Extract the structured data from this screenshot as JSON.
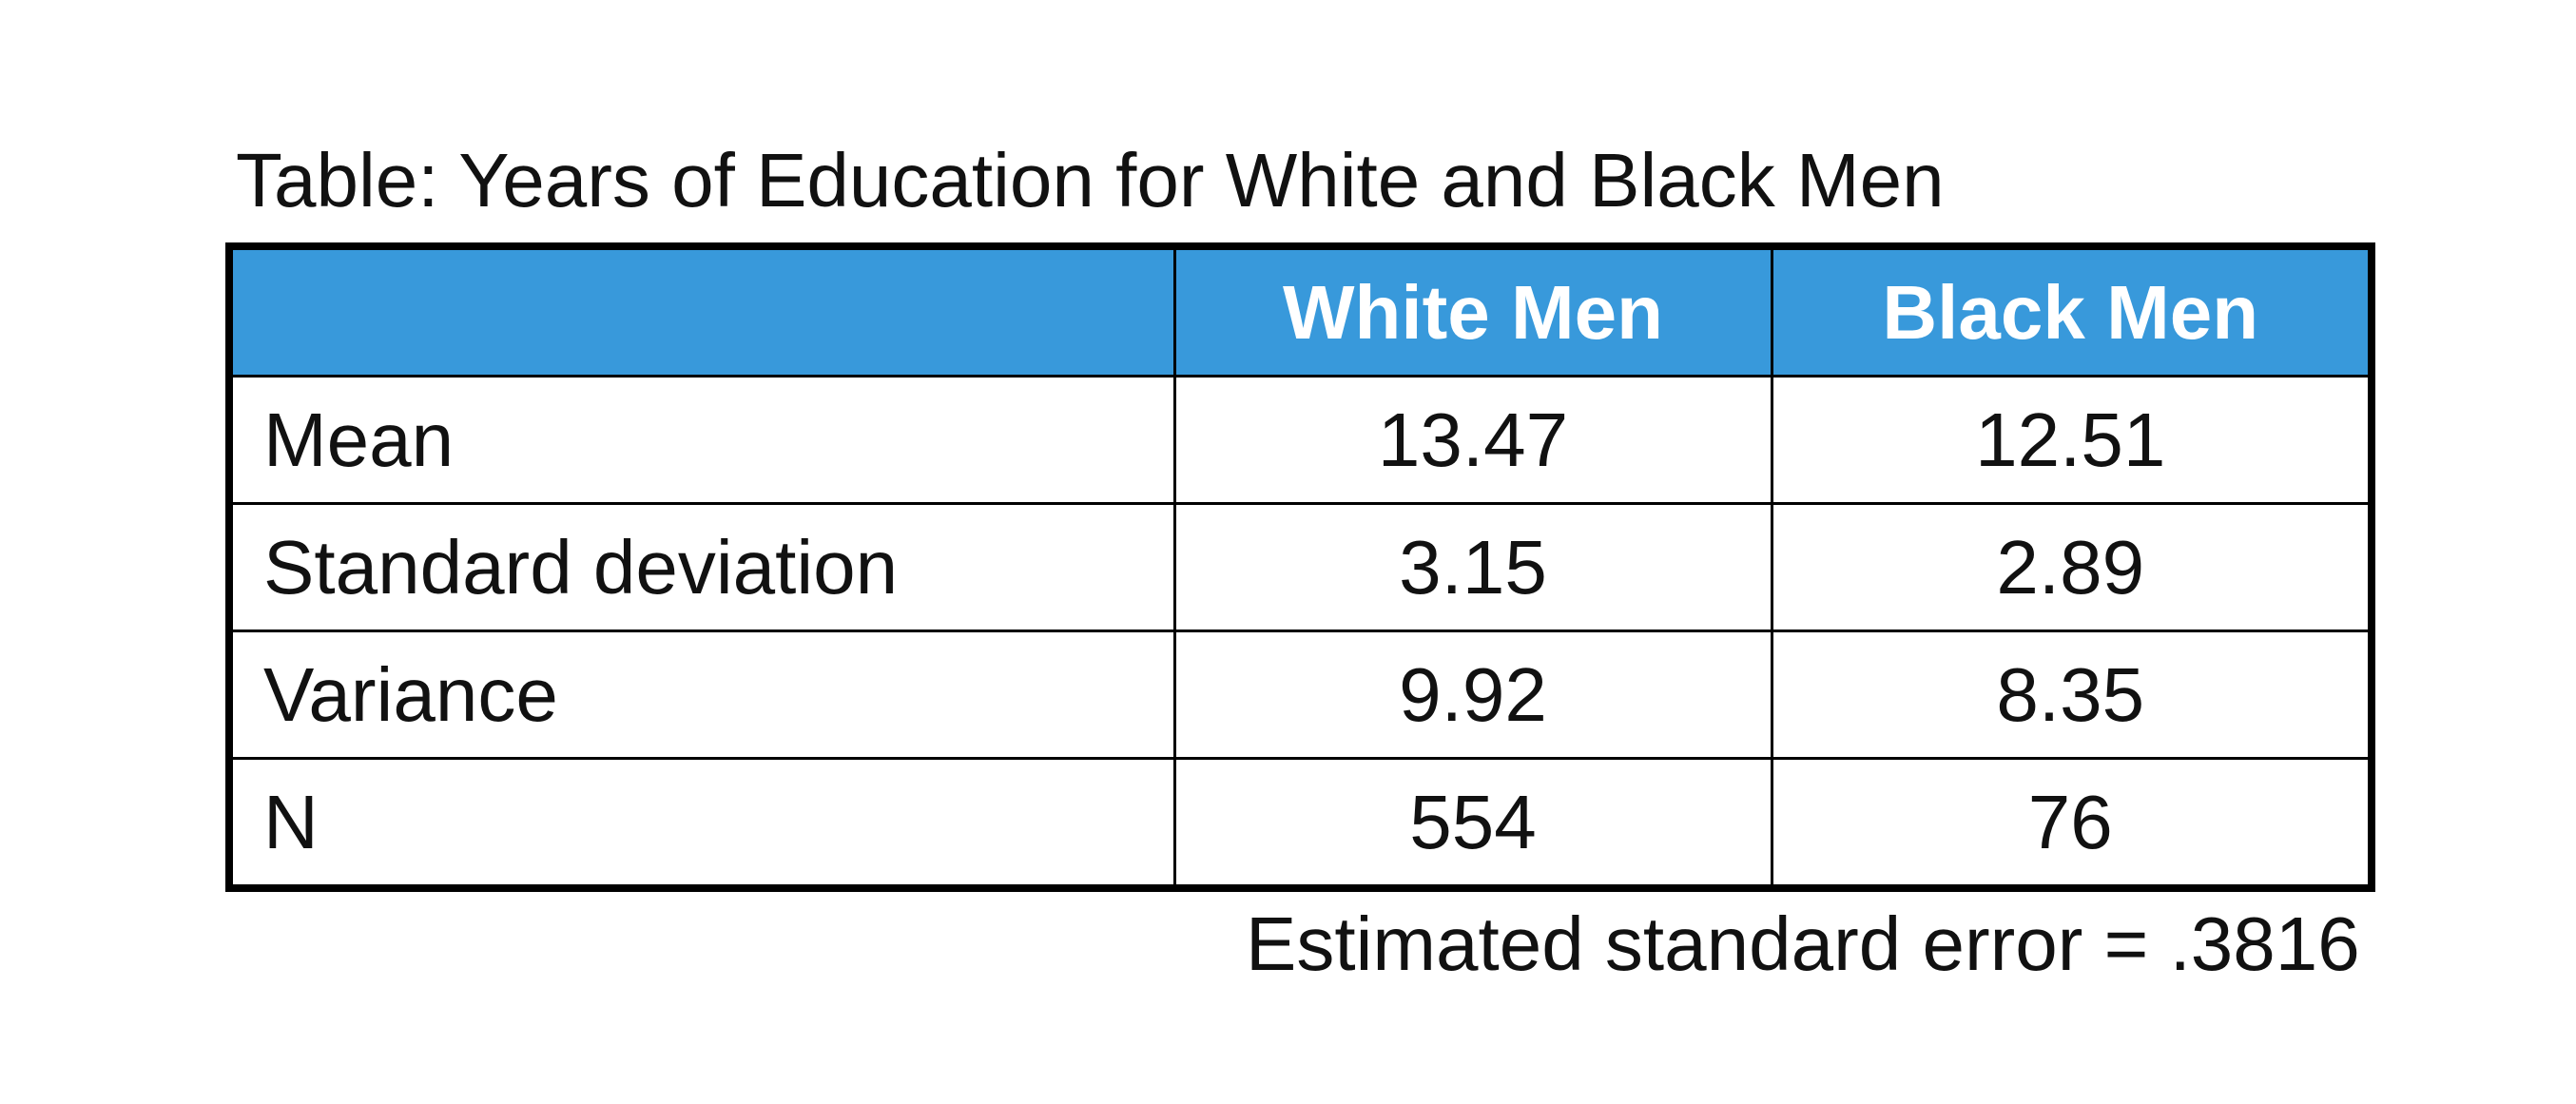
{
  "chart_data": {
    "type": "table",
    "title": "Table: Years of Education for White and Black Men",
    "header_color": "#3899db",
    "columns": [
      "",
      "White Men",
      "Black Men"
    ],
    "rows": [
      {
        "label": "Mean",
        "values": [
          "13.47",
          "12.51"
        ]
      },
      {
        "label": "Standard deviation",
        "values": [
          "3.15",
          "2.89"
        ]
      },
      {
        "label": "Variance",
        "values": [
          "9.92",
          "8.35"
        ]
      },
      {
        "label": "N",
        "values": [
          "554",
          "76"
        ]
      }
    ],
    "footnote": "Estimated standard error = .3816"
  }
}
